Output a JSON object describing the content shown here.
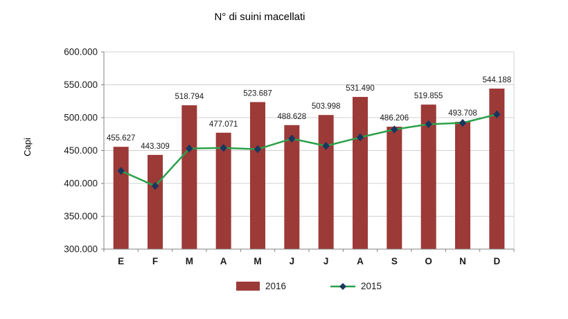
{
  "chart_data": {
    "type": "bar",
    "subtype": "bar+line combo",
    "title": "N° di suini macellati",
    "ylabel": "Capi",
    "xlabel": "",
    "categories": [
      "E",
      "F",
      "M",
      "A",
      "M",
      "J",
      "J",
      "A",
      "S",
      "O",
      "N",
      "D"
    ],
    "series": [
      {
        "name": "2016",
        "type": "bar",
        "color": "#9C3A38",
        "values": [
          455627,
          443309,
          518794,
          477071,
          523687,
          488628,
          503998,
          531490,
          486206,
          519855,
          493708,
          544188
        ],
        "labels": [
          "455.627",
          "443.309",
          "518.794",
          "477.071",
          "523.687",
          "488.628",
          "503.998",
          "531.490",
          "486.206",
          "519.855",
          "493.708",
          "544.188"
        ]
      },
      {
        "name": "2015",
        "type": "line",
        "color": "#2BA04A",
        "marker": "diamond",
        "marker_color": "#17375E",
        "values": [
          419000,
          396000,
          453000,
          454000,
          452000,
          468000,
          457000,
          470000,
          482000,
          490000,
          492000,
          505000
        ]
      }
    ],
    "ylim": [
      300000,
      600000
    ],
    "ytick_step": 50000,
    "ytick_labels": [
      "300.000",
      "350.000",
      "400.000",
      "450.000",
      "500.000",
      "550.000",
      "600.000"
    ],
    "grid": true,
    "gridline_color": "#d0d0d0",
    "axis_color": "#808080",
    "text_color": "#1a1a1a",
    "legend_position": "bottom"
  }
}
